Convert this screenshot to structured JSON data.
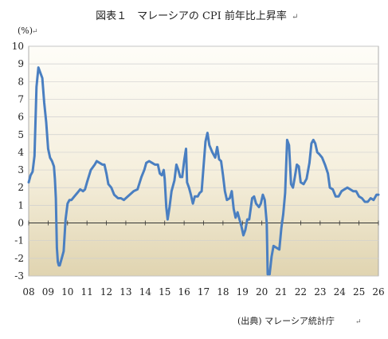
{
  "chart_data": {
    "type": "line",
    "title": "図表１　マレーシアの CPI 前年比上昇率",
    "y_unit_label": "(%)",
    "source": "(出典) マレーシア統計庁",
    "edit_mark": "↵",
    "xlabel": "",
    "ylabel": "",
    "x_ticks": [
      "08",
      "09",
      "10",
      "11",
      "12",
      "13",
      "14",
      "15",
      "16",
      "17",
      "18",
      "19",
      "20",
      "21",
      "22",
      "23",
      "24",
      "25",
      "26"
    ],
    "x_range": [
      2008.0,
      2026.0
    ],
    "y_ticks": [
      10,
      9,
      8,
      7,
      6,
      5,
      4,
      3,
      2,
      1,
      0,
      -1,
      -2,
      -3
    ],
    "ylim": [
      -3,
      10
    ],
    "grid": true,
    "legend": "none",
    "series": [
      {
        "color": "#4a7fc1",
        "points": [
          [
            2008.0,
            2.3
          ],
          [
            2008.1,
            2.7
          ],
          [
            2008.2,
            2.9
          ],
          [
            2008.3,
            3.8
          ],
          [
            2008.4,
            7.7
          ],
          [
            2008.5,
            8.8
          ],
          [
            2008.6,
            8.5
          ],
          [
            2008.7,
            8.2
          ],
          [
            2008.8,
            6.8
          ],
          [
            2008.9,
            5.7
          ],
          [
            2009.0,
            4.2
          ],
          [
            2009.1,
            3.7
          ],
          [
            2009.2,
            3.5
          ],
          [
            2009.3,
            3.2
          ],
          [
            2009.35,
            2.5
          ],
          [
            2009.4,
            1.4
          ],
          [
            2009.45,
            -1.4
          ],
          [
            2009.5,
            -2.2
          ],
          [
            2009.55,
            -2.4
          ],
          [
            2009.6,
            -2.4
          ],
          [
            2009.7,
            -2.0
          ],
          [
            2009.8,
            -1.6
          ],
          [
            2009.9,
            0.2
          ],
          [
            2010.0,
            1.1
          ],
          [
            2010.1,
            1.3
          ],
          [
            2010.2,
            1.3
          ],
          [
            2010.35,
            1.5
          ],
          [
            2010.5,
            1.7
          ],
          [
            2010.65,
            1.9
          ],
          [
            2010.8,
            1.8
          ],
          [
            2010.9,
            1.9
          ],
          [
            2011.0,
            2.3
          ],
          [
            2011.2,
            3.0
          ],
          [
            2011.4,
            3.3
          ],
          [
            2011.5,
            3.5
          ],
          [
            2011.65,
            3.4
          ],
          [
            2011.8,
            3.3
          ],
          [
            2011.9,
            3.3
          ],
          [
            2012.0,
            2.8
          ],
          [
            2012.1,
            2.2
          ],
          [
            2012.25,
            2.0
          ],
          [
            2012.4,
            1.6
          ],
          [
            2012.6,
            1.4
          ],
          [
            2012.75,
            1.4
          ],
          [
            2012.9,
            1.3
          ],
          [
            2013.0,
            1.4
          ],
          [
            2013.2,
            1.6
          ],
          [
            2013.4,
            1.8
          ],
          [
            2013.6,
            1.9
          ],
          [
            2013.8,
            2.6
          ],
          [
            2013.95,
            3.0
          ],
          [
            2014.05,
            3.4
          ],
          [
            2014.2,
            3.5
          ],
          [
            2014.35,
            3.4
          ],
          [
            2014.5,
            3.3
          ],
          [
            2014.65,
            3.3
          ],
          [
            2014.75,
            2.8
          ],
          [
            2014.85,
            2.7
          ],
          [
            2014.95,
            3.0
          ],
          [
            2015.0,
            2.5
          ],
          [
            2015.08,
            0.9
          ],
          [
            2015.15,
            0.2
          ],
          [
            2015.25,
            0.9
          ],
          [
            2015.35,
            1.8
          ],
          [
            2015.5,
            2.4
          ],
          [
            2015.6,
            3.3
          ],
          [
            2015.7,
            3.0
          ],
          [
            2015.8,
            2.6
          ],
          [
            2015.9,
            2.6
          ],
          [
            2016.0,
            3.5
          ],
          [
            2016.1,
            4.2
          ],
          [
            2016.15,
            2.3
          ],
          [
            2016.25,
            2.0
          ],
          [
            2016.35,
            1.6
          ],
          [
            2016.45,
            1.1
          ],
          [
            2016.55,
            1.5
          ],
          [
            2016.7,
            1.5
          ],
          [
            2016.8,
            1.7
          ],
          [
            2016.9,
            1.8
          ],
          [
            2017.0,
            3.2
          ],
          [
            2017.1,
            4.6
          ],
          [
            2017.2,
            5.1
          ],
          [
            2017.3,
            4.4
          ],
          [
            2017.45,
            4.0
          ],
          [
            2017.6,
            3.7
          ],
          [
            2017.7,
            4.3
          ],
          [
            2017.8,
            3.6
          ],
          [
            2017.9,
            3.5
          ],
          [
            2018.0,
            2.7
          ],
          [
            2018.1,
            1.8
          ],
          [
            2018.2,
            1.3
          ],
          [
            2018.35,
            1.4
          ],
          [
            2018.45,
            1.8
          ],
          [
            2018.55,
            0.8
          ],
          [
            2018.65,
            0.3
          ],
          [
            2018.75,
            0.6
          ],
          [
            2018.85,
            0.2
          ],
          [
            2018.95,
            -0.2
          ],
          [
            2019.05,
            -0.7
          ],
          [
            2019.15,
            -0.4
          ],
          [
            2019.25,
            0.2
          ],
          [
            2019.35,
            0.2
          ],
          [
            2019.5,
            1.4
          ],
          [
            2019.6,
            1.5
          ],
          [
            2019.7,
            1.1
          ],
          [
            2019.85,
            0.9
          ],
          [
            2019.95,
            1.1
          ],
          [
            2020.05,
            1.6
          ],
          [
            2020.15,
            1.3
          ],
          [
            2020.25,
            0.0
          ],
          [
            2020.3,
            -2.9
          ],
          [
            2020.4,
            -2.9
          ],
          [
            2020.5,
            -1.9
          ],
          [
            2020.6,
            -1.3
          ],
          [
            2020.75,
            -1.4
          ],
          [
            2020.9,
            -1.5
          ],
          [
            2021.0,
            -0.3
          ],
          [
            2021.1,
            0.5
          ],
          [
            2021.2,
            1.7
          ],
          [
            2021.3,
            4.7
          ],
          [
            2021.4,
            4.4
          ],
          [
            2021.5,
            2.2
          ],
          [
            2021.6,
            2.0
          ],
          [
            2021.7,
            2.6
          ],
          [
            2021.8,
            3.3
          ],
          [
            2021.9,
            3.2
          ],
          [
            2022.0,
            2.3
          ],
          [
            2022.15,
            2.2
          ],
          [
            2022.3,
            2.5
          ],
          [
            2022.45,
            3.4
          ],
          [
            2022.55,
            4.5
          ],
          [
            2022.65,
            4.7
          ],
          [
            2022.75,
            4.5
          ],
          [
            2022.85,
            4.0
          ],
          [
            2022.95,
            3.9
          ],
          [
            2023.1,
            3.7
          ],
          [
            2023.25,
            3.3
          ],
          [
            2023.4,
            2.8
          ],
          [
            2023.5,
            2.0
          ],
          [
            2023.65,
            1.9
          ],
          [
            2023.8,
            1.5
          ],
          [
            2023.95,
            1.5
          ],
          [
            2024.1,
            1.8
          ],
          [
            2024.25,
            1.9
          ],
          [
            2024.4,
            2.0
          ],
          [
            2024.55,
            1.9
          ],
          [
            2024.7,
            1.8
          ],
          [
            2024.85,
            1.8
          ],
          [
            2025.0,
            1.5
          ],
          [
            2025.15,
            1.4
          ],
          [
            2025.3,
            1.2
          ],
          [
            2025.45,
            1.2
          ],
          [
            2025.6,
            1.4
          ],
          [
            2025.75,
            1.3
          ],
          [
            2025.9,
            1.6
          ],
          [
            2026.0,
            1.6
          ]
        ]
      }
    ]
  }
}
